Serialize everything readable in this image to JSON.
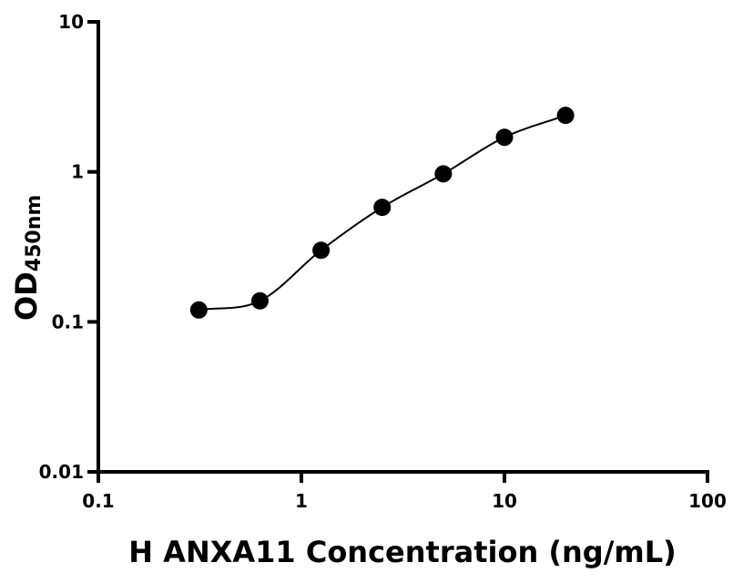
{
  "chart_data": {
    "type": "scatter",
    "title": "",
    "xlabel": "H ANXA11 Concentration (ng/mL)",
    "ylabel_main": "OD",
    "ylabel_sub": "450nm",
    "x_scale": "log",
    "y_scale": "log",
    "xlim": [
      0.1,
      100
    ],
    "ylim": [
      0.01,
      10
    ],
    "x_ticks": [
      {
        "value": 0.1,
        "label": "0.1"
      },
      {
        "value": 1,
        "label": "1"
      },
      {
        "value": 10,
        "label": "10"
      },
      {
        "value": 100,
        "label": "100"
      }
    ],
    "y_ticks": [
      {
        "value": 0.01,
        "label": "0.01"
      },
      {
        "value": 0.1,
        "label": "0.1"
      },
      {
        "value": 1,
        "label": "1"
      },
      {
        "value": 10,
        "label": "10"
      }
    ],
    "grid": false,
    "legend": "none",
    "series": [
      {
        "x": [
          0.3125,
          0.625,
          1.25,
          2.5,
          5,
          10,
          20
        ],
        "y": [
          0.12,
          0.138,
          0.3,
          0.58,
          0.97,
          1.7,
          2.38
        ],
        "marker": "circle",
        "color": "#000000",
        "fit_curve": true
      }
    ]
  }
}
